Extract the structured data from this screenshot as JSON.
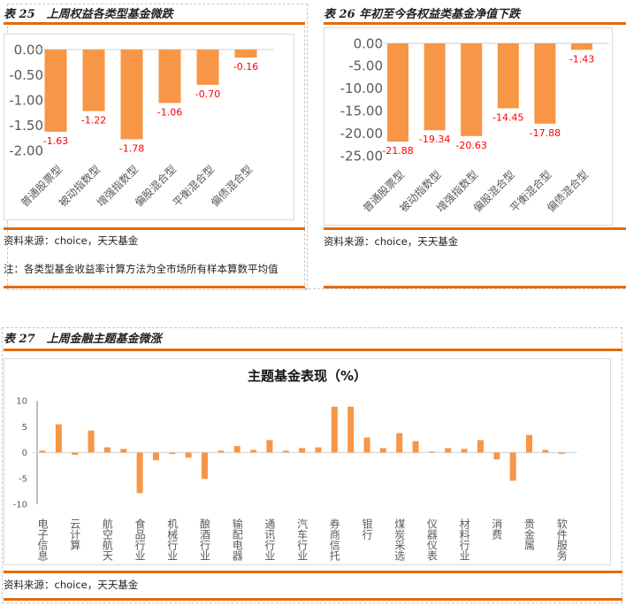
{
  "colors": {
    "accent_rule": "#E36C0A",
    "bar": "#F79646",
    "data_label": "#FF0000",
    "axis_text": "#595959"
  },
  "panel25": {
    "title": "表 25　上周权益各类型基金微跌",
    "source": "资料来源：choice，天天基金",
    "note": "注：各类型基金收益率计算方法为全市场所有样本算数平均值"
  },
  "panel26": {
    "title": "表 26 年初至今各权益类基金净值下跌",
    "source": "资料来源：choice，天天基金"
  },
  "panel27": {
    "title": "表 27　上周金融主题基金微涨",
    "source": "资料来源：choice，天天基金"
  },
  "chart_data": [
    {
      "type": "bar",
      "title": "",
      "categories": [
        "普通股票型",
        "被动指数型",
        "增强指数型",
        "偏股混合型",
        "平衡混合型",
        "偏债混合型"
      ],
      "values": [
        -1.63,
        -1.22,
        -1.78,
        -1.06,
        -0.7,
        -0.16
      ],
      "data_labels": [
        "-1.63",
        "-1.22",
        "-1.78",
        "-1.06",
        "-0.70",
        "-0.16"
      ],
      "ylim": [
        -2.0,
        0.0
      ],
      "yticks": [
        "0.00",
        "-0.50",
        "-1.00",
        "-1.50",
        "-2.00"
      ],
      "grid": false
    },
    {
      "type": "bar",
      "title": "",
      "categories": [
        "普通股票型",
        "被动指数型",
        "增强指数型",
        "偏股混合型",
        "平衡混合型",
        "偏债混合型"
      ],
      "values": [
        -21.88,
        -19.34,
        -20.63,
        -14.45,
        -17.88,
        -1.43
      ],
      "data_labels": [
        "-21.88",
        "-19.34",
        "-20.63",
        "-14.45",
        "-17.88",
        "-1.43"
      ],
      "ylim": [
        -25.0,
        0.0
      ],
      "yticks": [
        "0.00",
        "-5.00",
        "-10.00",
        "-15.00",
        "-20.00",
        "-25.00"
      ],
      "grid": false
    },
    {
      "type": "bar",
      "title": "主题基金表现（%）",
      "categories": [
        "电子信息",
        "",
        "云计算",
        "",
        "航空航天",
        "",
        "食品行业",
        "",
        "机械行业",
        "",
        "酿酒行业",
        "",
        "输配电器",
        "",
        "通讯行业",
        "",
        "汽车行业",
        "",
        "券商信托",
        "",
        "银行",
        "",
        "煤炭采选",
        "",
        "仪器仪表",
        "",
        "材料行业",
        "",
        "消费",
        "",
        "贵金属",
        "",
        "软件服务"
      ],
      "values": [
        0.35,
        5.45,
        -0.45,
        4.25,
        1.0,
        0.7,
        -7.85,
        -1.5,
        -0.3,
        -1.0,
        -5.1,
        0.35,
        1.25,
        0.5,
        2.4,
        0.35,
        0.85,
        1.0,
        8.85,
        8.85,
        2.9,
        0.85,
        3.75,
        2.2,
        0.2,
        0.85,
        0.7,
        2.4,
        -1.35,
        -5.45,
        3.4,
        0.5,
        -0.25
      ],
      "ylim": [
        -10,
        10
      ],
      "yticks": [
        "10",
        "5",
        "0",
        "-5",
        "-10"
      ],
      "grid": false
    }
  ]
}
